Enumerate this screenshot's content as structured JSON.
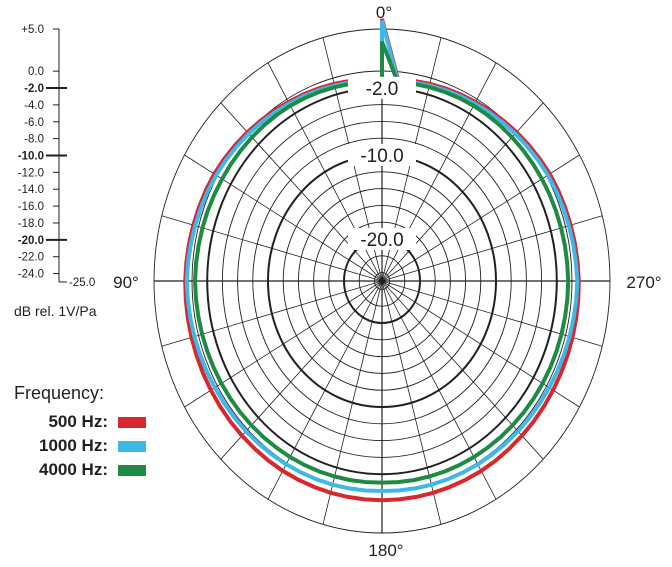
{
  "chart_data": {
    "type": "polar-line",
    "title": "",
    "angle_labels": [
      {
        "angle": 0,
        "text": "0°"
      },
      {
        "angle": 90,
        "text": "90°"
      },
      {
        "angle": 180,
        "text": "180°"
      },
      {
        "angle": 270,
        "text": "270°"
      }
    ],
    "radial_labels": [
      "-2.0",
      "-10.0",
      "-20.0"
    ],
    "radial_range_db": [
      -25,
      5
    ],
    "rings_db": [
      5,
      0,
      -2,
      -4,
      -6,
      -8,
      -10,
      -12,
      -14,
      -16,
      -18,
      -20,
      -22,
      -24
    ],
    "bold_rings_db": [
      -2,
      -10,
      -20
    ],
    "spoke_step_deg": 15,
    "scale_ticks": [
      "+5.0",
      "0.0",
      "-2.0",
      "-4.0",
      "-6.0",
      "-8.0",
      "-10.0",
      "-12.0",
      "-14.0",
      "-16.0",
      "-18.0",
      "-20.0",
      "-22.0",
      "-24.0",
      "-25.0"
    ],
    "scale_bold_ticks": [
      "-2.0",
      "-10.0",
      "-20.0"
    ],
    "unit_label": "dB rel. 1V/Pa",
    "legend_title": "Frequency:",
    "series": [
      {
        "name": "500 Hz:",
        "color": "#d7282f",
        "angles_deg": [
          0,
          30,
          60,
          90,
          120,
          150,
          180,
          210,
          240,
          270,
          300,
          330
        ],
        "values_db": [
          -1.0,
          -0.4,
          0.5,
          0.9,
          1.0,
          1.1,
          1.1,
          1.1,
          1.0,
          0.9,
          0.5,
          -0.4
        ]
      },
      {
        "name": "1000 Hz:",
        "color": "#3db8e8",
        "angles_deg": [
          0,
          30,
          60,
          90,
          120,
          150,
          180,
          210,
          240,
          270,
          300,
          330
        ],
        "values_db": [
          -1.2,
          -0.6,
          0.2,
          0.7,
          0.4,
          0.2,
          0.0,
          0.2,
          0.4,
          0.7,
          0.2,
          -0.6
        ]
      },
      {
        "name": "4000 Hz:",
        "color": "#1e8a43",
        "angles_deg": [
          0,
          30,
          60,
          90,
          120,
          150,
          180,
          210,
          240,
          270,
          300,
          330
        ],
        "values_db": [
          -1.3,
          -0.9,
          -0.7,
          -0.4,
          -0.6,
          -0.8,
          -1.0,
          -0.8,
          -0.6,
          -0.5,
          -0.7,
          -0.9
        ]
      }
    ]
  }
}
